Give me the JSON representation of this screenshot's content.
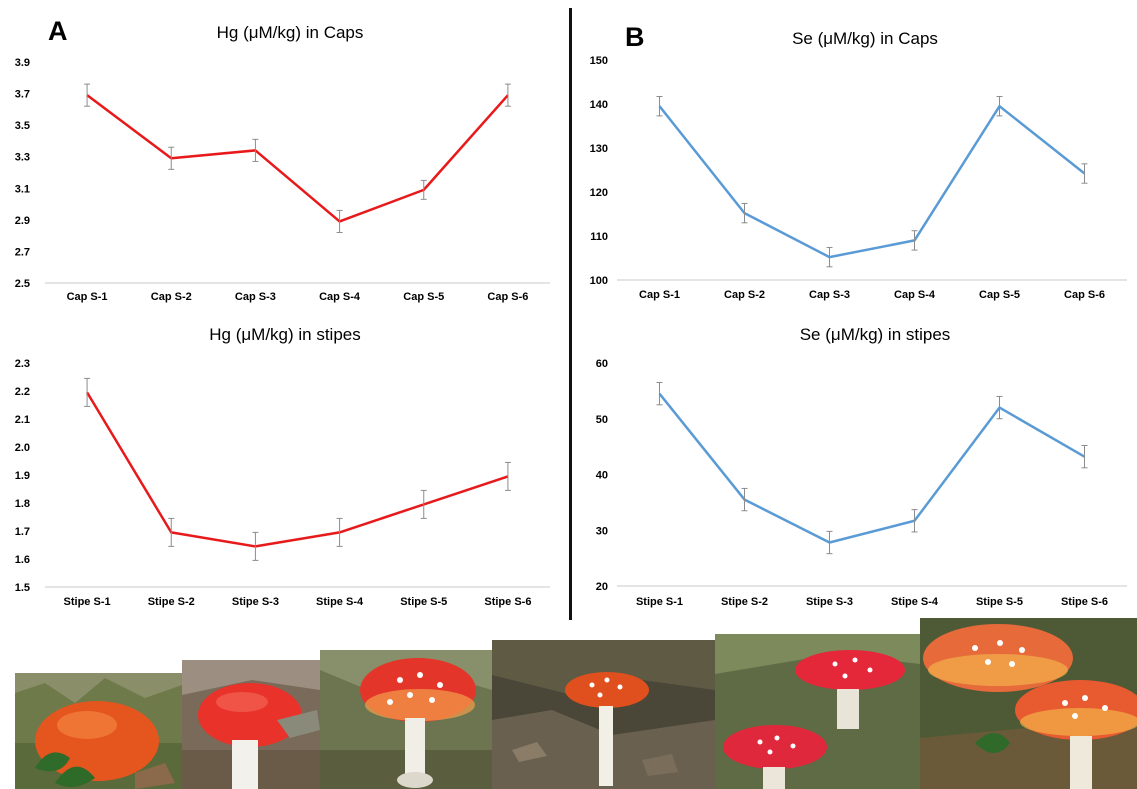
{
  "panels": {
    "a_label": "A",
    "b_label": "B"
  },
  "chart_data": [
    {
      "type": "line",
      "title": "Hg (μM/kg) in Caps",
      "categories": [
        "Cap S-1",
        "Cap S-2",
        "Cap S-3",
        "Cap S-4",
        "Cap S-5",
        "Cap S-6"
      ],
      "values": [
        3.69,
        3.29,
        3.34,
        2.89,
        3.09,
        3.69
      ],
      "error": [
        0.07,
        0.07,
        0.07,
        0.07,
        0.06,
        0.07
      ],
      "ylim": [
        2.5,
        3.9
      ],
      "yticks": [
        "2.5",
        "2.7",
        "2.9",
        "3.1",
        "3.3",
        "3.5",
        "3.7",
        "3.9"
      ],
      "color": "#e8191b",
      "grid": false
    },
    {
      "type": "line",
      "title": "Se (μM/kg) in Caps",
      "categories": [
        "Cap S-1",
        "Cap S-2",
        "Cap S-3",
        "Cap S-4",
        "Cap S-5",
        "Cap S-6"
      ],
      "values": [
        139.5,
        115.2,
        105.2,
        109.0,
        139.5,
        124.2
      ],
      "error": [
        2.2,
        2.2,
        2.2,
        2.2,
        2.2,
        2.2
      ],
      "ylim": [
        100,
        150
      ],
      "yticks": [
        "100",
        "110",
        "120",
        "130",
        "140",
        "150"
      ],
      "color": "#5b9bd5",
      "grid": false
    },
    {
      "type": "line",
      "title": "Hg (μM/kg) in stipes",
      "categories": [
        "Stipe S-1",
        "Stipe S-2",
        "Stipe S-3",
        "Stipe S-4",
        "Stipe S-5",
        "Stipe S-6"
      ],
      "values": [
        2.195,
        1.695,
        1.645,
        1.695,
        1.795,
        1.895
      ],
      "error": [
        0.05,
        0.05,
        0.05,
        0.05,
        0.05,
        0.05
      ],
      "ylim": [
        1.5,
        2.3
      ],
      "yticks": [
        "1.5",
        "1.6",
        "1.7",
        "1.8",
        "1.9",
        "2.0",
        "2.1",
        "2.2",
        "2.3"
      ],
      "color": "#e8191b",
      "grid": false
    },
    {
      "type": "line",
      "title": "Se (μM/kg) in stipes",
      "categories": [
        "Stipe S-1",
        "Stipe S-2",
        "Stipe S-3",
        "Stipe S-4",
        "Stipe S-5",
        "Stipe S-6"
      ],
      "values": [
        54.5,
        35.5,
        27.8,
        31.7,
        52.0,
        43.2
      ],
      "error": [
        2.0,
        2.0,
        2.0,
        2.0,
        2.0,
        2.0
      ],
      "ylim": [
        20,
        60
      ],
      "yticks": [
        "20",
        "30",
        "40",
        "50",
        "60"
      ],
      "color": "#5b9bd5",
      "grid": false
    }
  ],
  "photos": [
    "mushroom-photo",
    "mushroom-photo",
    "mushroom-photo",
    "mushroom-photo",
    "mushroom-photo",
    "mushroom-photo"
  ]
}
